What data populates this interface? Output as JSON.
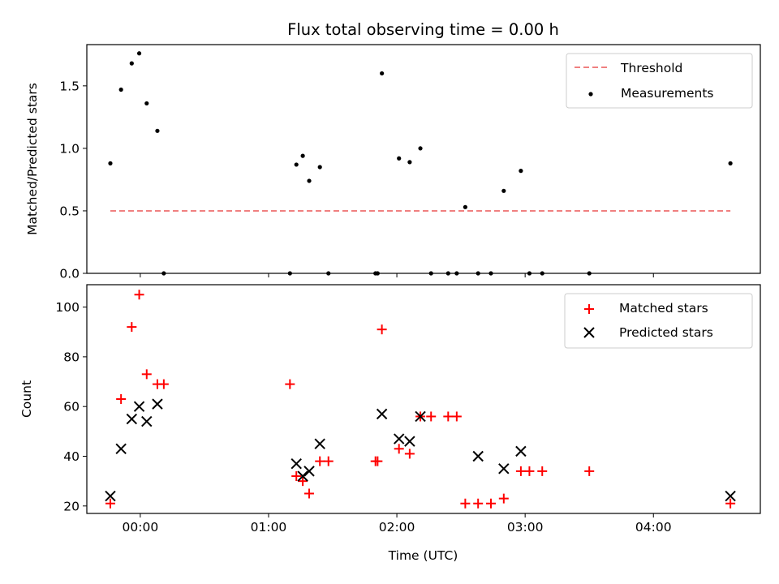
{
  "chart_data": [
    {
      "type": "scatter",
      "title": "Flux total observing time = 0.00 h",
      "xlabel": "",
      "ylabel": "Matched/Predicted stars",
      "x_unit": "minutes relative to 00:00 UTC",
      "xlim": [
        -25,
        290
      ],
      "ylim": [
        0,
        1.83
      ],
      "yticks": [
        0.0,
        0.5,
        1.0,
        1.5
      ],
      "ytick_labels": [
        "0.0",
        "0.5",
        "1.0",
        "1.5"
      ],
      "grid": false,
      "legend_position": "top-right",
      "threshold": {
        "name": "Threshold",
        "value": 0.5,
        "x_range": [
          -14,
          276
        ],
        "color": "#f08080"
      },
      "series": [
        {
          "name": "Measurements",
          "color": "#000000",
          "marker": "dot",
          "x": [
            -14,
            -9,
            -4,
            -0.5,
            3,
            8,
            11,
            70,
            73,
            76,
            79,
            84,
            88,
            110,
            111,
            113,
            121,
            126,
            131,
            136,
            144,
            148,
            152,
            158,
            164,
            170,
            178,
            182,
            188,
            210,
            276
          ],
          "y": [
            0.88,
            1.47,
            1.68,
            1.76,
            1.36,
            1.14,
            0,
            0,
            0.87,
            0.94,
            0.74,
            0.85,
            0,
            0,
            0,
            1.6,
            0.92,
            0.89,
            1.0,
            0,
            0,
            0,
            0.53,
            0,
            0,
            0.66,
            0.82,
            0,
            0,
            0,
            0.88
          ]
        }
      ]
    },
    {
      "type": "scatter",
      "title": "",
      "xlabel": "Time (UTC)",
      "ylabel": "Count",
      "x_unit": "minutes relative to 00:00 UTC",
      "xlim": [
        -25,
        290
      ],
      "ylim": [
        17,
        109
      ],
      "xticks": [
        0,
        60,
        120,
        180,
        240
      ],
      "xtick_labels": [
        "00:00",
        "01:00",
        "02:00",
        "03:00",
        "04:00"
      ],
      "yticks": [
        20,
        40,
        60,
        80,
        100
      ],
      "ytick_labels": [
        "20",
        "40",
        "60",
        "80",
        "100"
      ],
      "grid": false,
      "legend_position": "top-right",
      "series": [
        {
          "name": "Matched stars",
          "color": "#ff0000",
          "marker": "plus",
          "x": [
            -14,
            -9,
            -4,
            -0.5,
            3,
            8,
            11,
            70,
            73,
            76,
            79,
            84,
            88,
            110,
            111,
            113,
            121,
            126,
            131,
            136,
            144,
            148,
            152,
            158,
            164,
            170,
            178,
            182,
            188,
            210,
            276
          ],
          "y": [
            21,
            63,
            92,
            105,
            73,
            69,
            69,
            69,
            32,
            30,
            25,
            38,
            38,
            38,
            38,
            91,
            43,
            41,
            56,
            56,
            56,
            56,
            21,
            21,
            21,
            23,
            34,
            34,
            34,
            34,
            21
          ]
        },
        {
          "name": "Predicted stars",
          "color": "#000000",
          "marker": "x",
          "x": [
            -14,
            -9,
            -4,
            -0.5,
            3,
            8,
            73,
            76,
            79,
            84,
            113,
            121,
            126,
            131,
            158,
            170,
            178,
            276
          ],
          "y": [
            24,
            43,
            55,
            60,
            54,
            61,
            37,
            32,
            34,
            45,
            57,
            47,
            46,
            56,
            40,
            35,
            42,
            24
          ]
        }
      ]
    }
  ]
}
